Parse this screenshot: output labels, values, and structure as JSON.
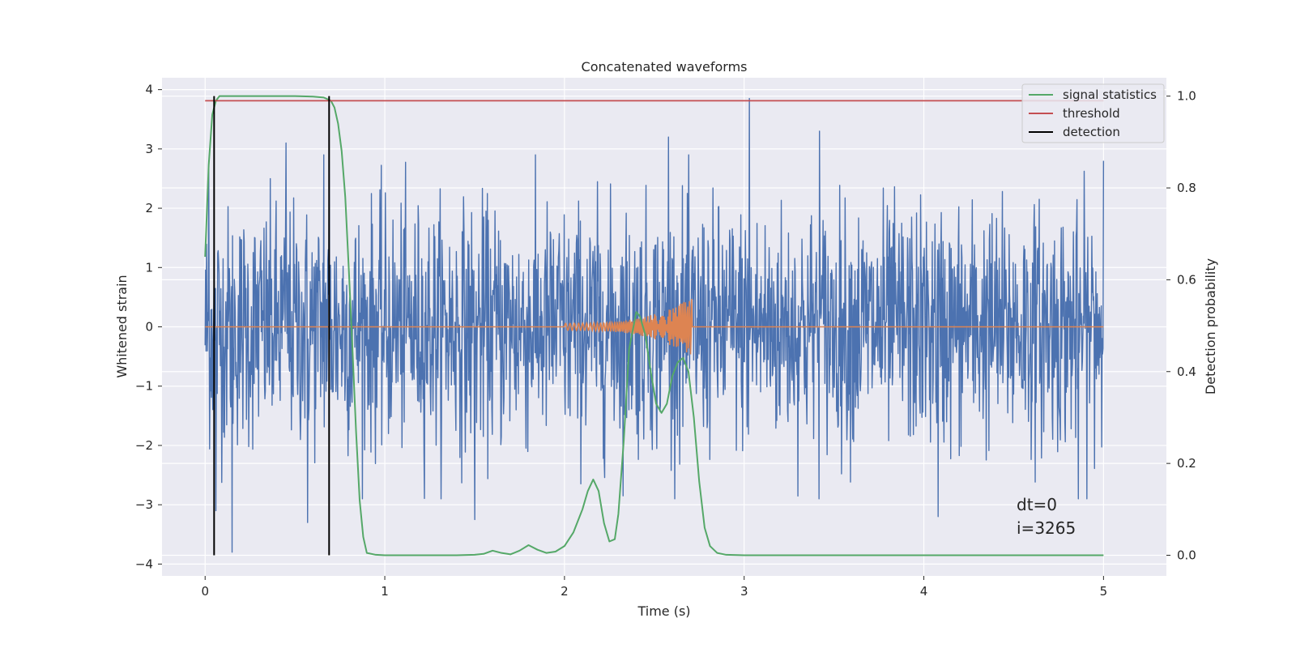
{
  "chart_data": {
    "type": "line",
    "title": "Concatenated waveforms",
    "xlabel": "Time (s)",
    "ylabel": "Whitened strain",
    "y2label": "Detection probability",
    "xlim": [
      -0.24,
      5.35
    ],
    "ylim": [
      -4.2,
      4.2
    ],
    "y2lim": [
      -0.045,
      1.04
    ],
    "xticks": [
      0,
      1,
      2,
      3,
      4,
      5
    ],
    "yticks": [
      -4,
      -3,
      -2,
      -1,
      0,
      1,
      2,
      3,
      4
    ],
    "y2ticks": [
      0.0,
      0.2,
      0.4,
      0.6,
      0.8,
      1.0
    ],
    "xtick_labels": [
      "0",
      "1",
      "2",
      "3",
      "4",
      "5"
    ],
    "ytick_labels": [
      "−4",
      "−3",
      "−2",
      "−1",
      "0",
      "1",
      "2",
      "3",
      "4"
    ],
    "y2tick_labels": [
      "0.0",
      "0.2",
      "0.4",
      "0.6",
      "0.8",
      "1.0"
    ],
    "grid": true,
    "legend_position": "top-right",
    "colors": {
      "strain": "#4c72b0",
      "template": "#dd8452",
      "signal_statistics": "#55a868",
      "threshold": "#c44e52",
      "detection": "#000000",
      "background": "#eaeaf2",
      "grid": "#ffffff"
    },
    "series": [
      {
        "name": "signal statistics",
        "axis": "right",
        "x": [
          0.0,
          0.02,
          0.04,
          0.06,
          0.08,
          0.1,
          0.15,
          0.2,
          0.3,
          0.4,
          0.5,
          0.6,
          0.66,
          0.7,
          0.72,
          0.74,
          0.76,
          0.78,
          0.8,
          0.82,
          0.84,
          0.86,
          0.88,
          0.9,
          0.95,
          1.0,
          1.2,
          1.4,
          1.5,
          1.55,
          1.6,
          1.65,
          1.7,
          1.75,
          1.8,
          1.85,
          1.9,
          1.95,
          2.0,
          2.05,
          2.1,
          2.13,
          2.16,
          2.19,
          2.22,
          2.25,
          2.28,
          2.3,
          2.33,
          2.36,
          2.4,
          2.42,
          2.45,
          2.48,
          2.51,
          2.54,
          2.57,
          2.6,
          2.63,
          2.66,
          2.69,
          2.72,
          2.75,
          2.78,
          2.81,
          2.85,
          2.9,
          3.0,
          3.5,
          4.0,
          4.5,
          5.0
        ],
        "values": [
          0.65,
          0.85,
          0.96,
          0.99,
          1.0,
          1.0,
          1.0,
          1.0,
          1.0,
          1.0,
          1.0,
          0.999,
          0.997,
          0.99,
          0.975,
          0.94,
          0.88,
          0.78,
          0.62,
          0.45,
          0.27,
          0.12,
          0.04,
          0.005,
          0.001,
          0.0,
          0.0,
          0.0,
          0.001,
          0.003,
          0.01,
          0.005,
          0.002,
          0.01,
          0.022,
          0.012,
          0.005,
          0.008,
          0.02,
          0.05,
          0.1,
          0.14,
          0.165,
          0.14,
          0.07,
          0.03,
          0.035,
          0.09,
          0.25,
          0.45,
          0.53,
          0.52,
          0.48,
          0.4,
          0.33,
          0.31,
          0.33,
          0.39,
          0.42,
          0.43,
          0.4,
          0.3,
          0.16,
          0.06,
          0.02,
          0.005,
          0.001,
          0.0,
          0.0,
          0.0,
          0.0,
          0.0
        ]
      },
      {
        "name": "threshold",
        "axis": "right",
        "x": [
          0.0,
          5.0
        ],
        "values": [
          0.99,
          0.99
        ]
      },
      {
        "name": "detection",
        "axis": "right",
        "x": [
          0.05,
          0.69
        ],
        "values": [
          1.0,
          1.0
        ],
        "note_type": "vlines"
      }
    ],
    "strain": {
      "axis": "left",
      "x_range": [
        0.0,
        5.0
      ],
      "samples": 2000,
      "peak_times": [
        0.02,
        0.06,
        0.15,
        0.45,
        0.57,
        0.66,
        0.69,
        1.5,
        2.58,
        3.03,
        3.42,
        4.08,
        4.86,
        5.0
      ],
      "peak_values": [
        2.8,
        -3.1,
        -3.8,
        3.1,
        -3.3,
        2.9,
        2.8,
        -3.25,
        3.2,
        3.85,
        3.3,
        -3.2,
        -2.9,
        2.8
      ]
    },
    "template": {
      "axis": "left",
      "x_range": [
        2.0,
        2.71
      ],
      "max_amplitude": 0.5
    },
    "annotation": [
      "dt=0",
      "i=3265"
    ]
  }
}
